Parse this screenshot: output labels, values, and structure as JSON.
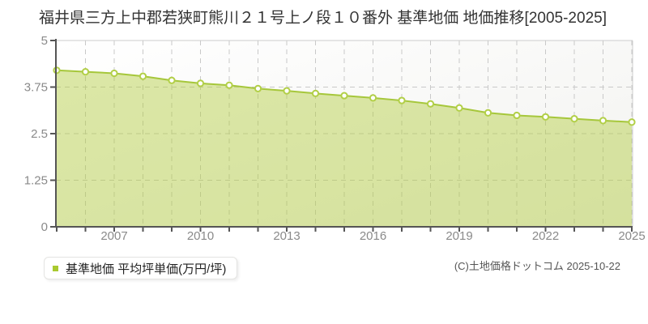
{
  "title": "福井県三方上中郡若狭町熊川２１号上ノ段１０番外 基準地価 地価推移[2005-2025]",
  "legend": {
    "label": "基準地価 平均坪単価(万円/坪)"
  },
  "copyright": "(C)土地価格ドットコム 2025-10-22",
  "chart_data": {
    "type": "area",
    "title": "福井県三方上中郡若狭町熊川２１号上ノ段１０番外 基準地価 地価推移[2005-2025]",
    "x": [
      2005,
      2006,
      2007,
      2008,
      2009,
      2010,
      2011,
      2012,
      2013,
      2014,
      2015,
      2016,
      2017,
      2018,
      2019,
      2020,
      2021,
      2022,
      2023,
      2024,
      2025
    ],
    "series": [
      {
        "name": "基準地価 平均坪単価(万円/坪)",
        "values": [
          4.2,
          4.16,
          4.12,
          4.04,
          3.93,
          3.85,
          3.8,
          3.71,
          3.65,
          3.58,
          3.52,
          3.46,
          3.39,
          3.3,
          3.19,
          3.06,
          2.99,
          2.95,
          2.9,
          2.85,
          2.81
        ]
      }
    ],
    "xlim": [
      2005,
      2025
    ],
    "ylim": [
      0,
      5
    ],
    "y_ticks": [
      0,
      1.25,
      2.5,
      3.75,
      5
    ],
    "y_tick_labels": [
      "0",
      "1.25",
      "2.5",
      "3.75",
      "5"
    ],
    "x_tick_labels": [
      "2007",
      "2010",
      "2013",
      "2016",
      "2019",
      "2022",
      "2025"
    ],
    "x_minor_tick_step_years": 1,
    "grid": true,
    "legend_position": "bottom-left",
    "colors": {
      "area_fill": "rgba(178,204,60,0.45)",
      "line": "#a6c73b",
      "marker_fill": "#ffffff",
      "marker_stroke": "#b2cf47",
      "grid": "#c9c9c9",
      "axis": "#555555",
      "tick_label": "#8a8a8a",
      "plot_border": "#cccccc",
      "legend_swatch": "#a9c92f"
    }
  }
}
